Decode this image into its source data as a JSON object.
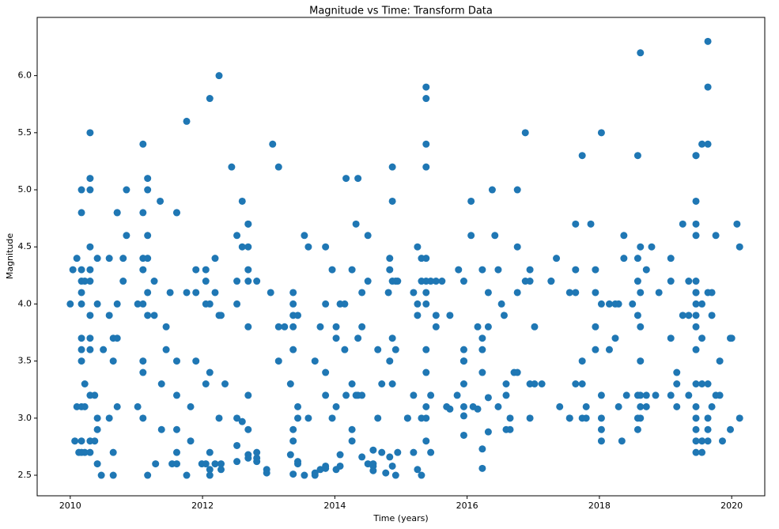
{
  "chart_data": {
    "type": "scatter",
    "title": "Magnitude vs Time: Transform Data",
    "x_label": "Time (years)",
    "y_label": "Magnitude",
    "color": "#1f77b4",
    "xlim": [
      2009.5,
      2020.5
    ],
    "ylim": [
      2.32,
      6.51
    ],
    "xticks": [
      2010,
      2012,
      2014,
      2016,
      2018,
      2020
    ],
    "yticks": [
      2.5,
      {
        "value": 3,
        "label": "3.0"
      },
      3.5,
      {
        "value": 4,
        "label": "4.0"
      },
      4.5,
      {
        "value": 5,
        "label": "5.0"
      },
      5.5,
      {
        "value": 6,
        "label": "6.0"
      }
    ],
    "x": [
      2010,
      2010.04,
      2010.07,
      2010.1,
      2010.1,
      2010.13,
      2010.17,
      2010.17,
      2010.17,
      2010.17,
      2010.17,
      2010.17,
      2010.17,
      2010.17,
      2010.17,
      2010.17,
      2010.17,
      2010.17,
      2010.22,
      2010.22,
      2010.22,
      2010.22,
      2010.3,
      2010.3,
      2010.3,
      2010.3,
      2010.3,
      2010.3,
      2010.3,
      2010.3,
      2010.3,
      2010.3,
      2010.3,
      2010.3,
      2010.37,
      2010.37,
      2010.41,
      2010.41,
      2010.41,
      2010.41,
      2010.41,
      2010.47,
      2010.5,
      2010.59,
      2010.59,
      2010.59,
      2010.65,
      2010.65,
      2010.65,
      2010.65,
      2010.71,
      2010.71,
      2010.71,
      2010.71,
      2010.71,
      2010.8,
      2010.8,
      2010.85,
      2010.85,
      2011.02,
      2011.02,
      2011.1,
      2011.1,
      2011.1,
      2011.1,
      2011.1,
      2011.1,
      2011.1,
      2011.1,
      2011.17,
      2011.17,
      2011.17,
      2011.17,
      2011.17,
      2011.17,
      2011.17,
      2011.27,
      2011.27,
      2011.29,
      2011.36,
      2011.38,
      2011.38,
      2011.45,
      2011.45,
      2011.51,
      2011.54,
      2011.61,
      2011.61,
      2011.61,
      2011.61,
      2011.61,
      2011.61,
      2011.61,
      2011.76,
      2011.76,
      2011.76,
      2011.82,
      2011.82,
      2011.9,
      2011.9,
      2011.9,
      2011.99,
      2012.05,
      2012.05,
      2012.05,
      2012.05,
      2012.05,
      2012.11,
      2012.11,
      2012.11,
      2012.11,
      2012.11,
      2012.11,
      2012.19,
      2012.19,
      2012.19,
      2012.25,
      2012.25,
      2012.25,
      2012.28,
      2012.28,
      2012.28,
      2012.34,
      2012.44,
      2012.52,
      2012.52,
      2012.52,
      2012.52,
      2012.52,
      2012.52,
      2012.6,
      2012.6,
      2012.6,
      2012.69,
      2012.69,
      2012.69,
      2012.69,
      2012.69,
      2012.69,
      2012.69,
      2012.69,
      2012.69,
      2012.69,
      2012.82,
      2012.82,
      2012.82,
      2012.82,
      2012.97,
      2012.97,
      2013.03,
      2013.06,
      2013.15,
      2013.15,
      2013.15,
      2013.24,
      2013.33,
      2013.33,
      2013.37,
      2013.37,
      2013.37,
      2013.37,
      2013.37,
      2013.37,
      2013.37,
      2013.37,
      2013.44,
      2013.44,
      2013.44,
      2013.44,
      2013.44,
      2013.54,
      2013.54,
      2013.6,
      2013.6,
      2013.7,
      2013.7,
      2013.7,
      2013.78,
      2013.78,
      2013.86,
      2013.86,
      2013.86,
      2013.86,
      2013.86,
      2013.86,
      2013.96,
      2013.96,
      2014.02,
      2014.02,
      2014.02,
      2014.02,
      2014.08,
      2014.08,
      2014.08,
      2014.15,
      2014.15,
      2014.17,
      2014.17,
      2014.26,
      2014.26,
      2014.26,
      2014.26,
      2014.32,
      2014.32,
      2014.35,
      2014.35,
      2014.35,
      2014.41,
      2014.41,
      2014.41,
      2014.41,
      2014.5,
      2014.5,
      2014.5,
      2014.58,
      2014.58,
      2014.58,
      2014.58,
      2014.65,
      2014.65,
      2014.71,
      2014.71,
      2014.77,
      2014.81,
      2014.83,
      2014.83,
      2014.83,
      2014.83,
      2014.87,
      2014.87,
      2014.87,
      2014.87,
      2014.87,
      2014.87,
      2014.92,
      2014.92,
      2014.92,
      2014.95,
      2014.95,
      2015.1,
      2015.1,
      2015.19,
      2015.19,
      2015.19,
      2015.25,
      2015.25,
      2015.25,
      2015.25,
      2015.31,
      2015.31,
      2015.31,
      2015.31,
      2015.38,
      2015.38,
      2015.38,
      2015.38,
      2015.38,
      2015.38,
      2015.38,
      2015.38,
      2015.38,
      2015.38,
      2015.38,
      2015.38,
      2015.38,
      2015.45,
      2015.45,
      2015.45,
      2015.53,
      2015.53,
      2015.53,
      2015.62,
      2015.69,
      2015.74,
      2015.74,
      2015.85,
      2015.87,
      2015.95,
      2015.95,
      2015.95,
      2015.95,
      2015.95,
      2015.95,
      2015.95,
      2015.95,
      2016.06,
      2016.06,
      2016.09,
      2016.16,
      2016.16,
      2016.23,
      2016.23,
      2016.23,
      2016.23,
      2016.23,
      2016.23,
      2016.32,
      2016.32,
      2016.32,
      2016.32,
      2016.38,
      2016.42,
      2016.47,
      2016.47,
      2016.52,
      2016.56,
      2016.59,
      2016.59,
      2016.59,
      2016.65,
      2016.65,
      2016.71,
      2016.76,
      2016.76,
      2016.76,
      2016.76,
      2016.88,
      2016.88,
      2016.95,
      2016.95,
      2016.95,
      2016.95,
      2017.02,
      2017.02,
      2017.13,
      2017.27,
      2017.27,
      2017.35,
      2017.4,
      2017.55,
      2017.55,
      2017.55,
      2017.64,
      2017.64,
      2017.64,
      2017.64,
      2017.74,
      2017.74,
      2017.74,
      2017.74,
      2017.8,
      2017.8,
      2017.87,
      2017.94,
      2017.94,
      2017.94,
      2017.94,
      2018.03,
      2018.03,
      2018.03,
      2018.03,
      2018.03,
      2018.03,
      2018.15,
      2018.15,
      2018.24,
      2018.24,
      2018.29,
      2018.29,
      2018.34,
      2018.37,
      2018.37,
      2018.41,
      2018.5,
      2018.58,
      2018.58,
      2018.58,
      2018.58,
      2018.58,
      2018.58,
      2018.58,
      2018.62,
      2018.62,
      2018.62,
      2018.62,
      2018.62,
      2018.62,
      2018.62,
      2018.62,
      2018.71,
      2018.71,
      2018.71,
      2018.79,
      2018.85,
      2018.9,
      2019.08,
      2019.08,
      2019.08,
      2019.08,
      2019.17,
      2019.17,
      2019.17,
      2019.26,
      2019.26,
      2019.35,
      2019.35,
      2019.35,
      2019.46,
      2019.46,
      2019.46,
      2019.46,
      2019.46,
      2019.46,
      2019.46,
      2019.46,
      2019.46,
      2019.46,
      2019.46,
      2019.46,
      2019.46,
      2019.46,
      2019.46,
      2019.46,
      2019.46,
      2019.46,
      2019.55,
      2019.55,
      2019.55,
      2019.55,
      2019.55,
      2019.55,
      2019.64,
      2019.64,
      2019.64,
      2019.64,
      2019.64,
      2019.64,
      2019.64,
      2019.64,
      2019.7,
      2019.7,
      2019.7,
      2019.76,
      2019.76,
      2019.82,
      2019.82,
      2019.86,
      2019.98,
      2019.98,
      2020,
      2020.08,
      2020.12,
      2020.12
    ],
    "values": [
      4.0,
      4.3,
      2.8,
      4.4,
      3.1,
      2.7,
      4.3,
      4.2,
      4.1,
      5.0,
      4.8,
      3.7,
      3.6,
      3.1,
      2.8,
      4.0,
      3.5,
      2.7,
      3.3,
      3.1,
      2.7,
      4.2,
      4.2,
      4.3,
      4.5,
      5.0,
      5.1,
      5.5,
      3.9,
      3.7,
      3.6,
      3.2,
      2.8,
      2.7,
      2.8,
      3.2,
      4.4,
      4.0,
      3.0,
      2.9,
      2.6,
      2.5,
      3.6,
      4.4,
      3.9,
      3.0,
      3.5,
      2.7,
      2.5,
      3.7,
      4.8,
      4.8,
      3.7,
      3.1,
      4.0,
      4.2,
      4.4,
      4.6,
      5.0,
      3.1,
      4.0,
      5.4,
      4.8,
      4.4,
      4.3,
      4.0,
      3.5,
      3.4,
      3.0,
      5.1,
      5.0,
      4.6,
      4.4,
      4.1,
      3.9,
      2.5,
      4.2,
      3.9,
      2.6,
      4.9,
      3.3,
      2.9,
      3.6,
      3.8,
      4.1,
      2.6,
      4.8,
      4.8,
      3.2,
      3.5,
      2.9,
      2.7,
      2.6,
      5.6,
      2.5,
      4.1,
      2.8,
      3.1,
      3.5,
      4.3,
      4.1,
      2.6,
      4.3,
      4.0,
      3.3,
      2.6,
      4.2,
      5.8,
      4.0,
      3.4,
      2.7,
      2.5,
      2.55,
      4.4,
      4.1,
      2.6,
      6.0,
      3.9,
      3.0,
      2.55,
      3.9,
      2.6,
      3.3,
      5.2,
      4.6,
      4.0,
      3.0,
      2.62,
      2.76,
      4.2,
      4.9,
      4.5,
      2.97,
      4.7,
      4.3,
      4.2,
      3.8,
      3.2,
      2.9,
      2.68,
      2.65,
      4.7,
      4.5,
      4.2,
      2.7,
      2.65,
      2.62,
      2.55,
      2.52,
      4.1,
      5.4,
      5.2,
      3.8,
      3.5,
      3.8,
      3.3,
      2.68,
      4.1,
      4.0,
      3.9,
      3.8,
      3.6,
      2.9,
      2.8,
      2.51,
      3.9,
      3.1,
      3.0,
      2.62,
      2.6,
      4.6,
      2.5,
      4.5,
      3.0,
      2.52,
      2.5,
      3.5,
      2.55,
      3.8,
      4.0,
      3.2,
      4.5,
      3.4,
      2.58,
      2.56,
      4.3,
      3.0,
      3.8,
      3.7,
      2.55,
      3.1,
      4.0,
      2.58,
      2.68,
      4.0,
      3.6,
      5.1,
      3.2,
      4.3,
      3.3,
      2.9,
      2.8,
      4.7,
      3.2,
      5.1,
      3.7,
      3.2,
      4.1,
      3.8,
      3.2,
      2.66,
      4.2,
      4.6,
      2.6,
      2.58,
      2.54,
      2.6,
      2.72,
      3.6,
      3.0,
      3.3,
      2.7,
      2.52,
      4.1,
      4.4,
      4.3,
      3.5,
      2.66,
      5.2,
      4.9,
      4.2,
      3.7,
      3.3,
      2.58,
      4.2,
      3.6,
      2.5,
      4.2,
      2.7,
      3.0,
      3.0,
      4.1,
      3.2,
      2.7,
      4.5,
      4.0,
      3.9,
      2.55,
      4.4,
      4.2,
      3.0,
      2.5,
      5.9,
      5.8,
      5.4,
      5.2,
      4.4,
      4.2,
      4.1,
      4.0,
      3.6,
      3.4,
      3.1,
      3.0,
      2.8,
      4.2,
      3.2,
      2.7,
      4.2,
      3.8,
      3.9,
      4.2,
      3.1,
      3.9,
      3.08,
      3.2,
      4.3,
      3.5,
      2.85,
      3.3,
      4.2,
      3.6,
      3.5,
      3.1,
      3.02,
      4.9,
      4.6,
      3.1,
      3.8,
      3.08,
      4.3,
      3.4,
      3.7,
      3.6,
      2.56,
      2.73,
      4.1,
      3.8,
      3.18,
      2.88,
      5.0,
      4.6,
      4.3,
      3.1,
      4.0,
      3.9,
      3.3,
      3.2,
      2.9,
      3.0,
      2.9,
      3.4,
      5.0,
      4.5,
      3.4,
      4.1,
      4.2,
      5.5,
      4.3,
      4.2,
      3.3,
      3.0,
      3.8,
      3.3,
      3.3,
      4.2,
      4.2,
      4.4,
      3.1,
      4.1,
      3.0,
      3.0,
      4.7,
      4.3,
      4.1,
      3.3,
      5.3,
      3.5,
      3.3,
      3.0,
      3.0,
      3.1,
      4.7,
      4.3,
      4.1,
      3.8,
      3.6,
      5.5,
      4.0,
      3.0,
      2.9,
      2.8,
      3.2,
      4.0,
      3.6,
      3.7,
      4.0,
      4.0,
      3.1,
      2.8,
      4.6,
      4.4,
      3.2,
      4.0,
      5.3,
      4.4,
      4.2,
      3.9,
      3.2,
      3.0,
      2.9,
      6.2,
      4.5,
      4.1,
      3.8,
      3.5,
      3.2,
      3.1,
      3.0,
      4.3,
      3.2,
      3.1,
      4.5,
      3.2,
      4.1,
      4.4,
      4.2,
      3.7,
      3.2,
      3.3,
      3.1,
      3.4,
      4.7,
      3.9,
      4.2,
      3.9,
      3.2,
      5.3,
      5.3,
      4.9,
      4.7,
      4.6,
      4.2,
      4.1,
      4.0,
      3.9,
      3.8,
      3.6,
      3.3,
      3.1,
      3.0,
      2.9,
      2.8,
      2.7,
      4.1,
      5.4,
      3.3,
      3.7,
      2.8,
      2.7,
      4.0,
      6.3,
      5.9,
      5.4,
      4.1,
      3.3,
      3.0,
      2.9,
      2.8,
      4.1,
      3.9,
      3.1,
      3.2,
      4.6,
      3.5,
      3.2,
      2.8,
      3.7,
      2.9,
      3.7,
      4.7,
      4.5,
      3.0
    ]
  }
}
